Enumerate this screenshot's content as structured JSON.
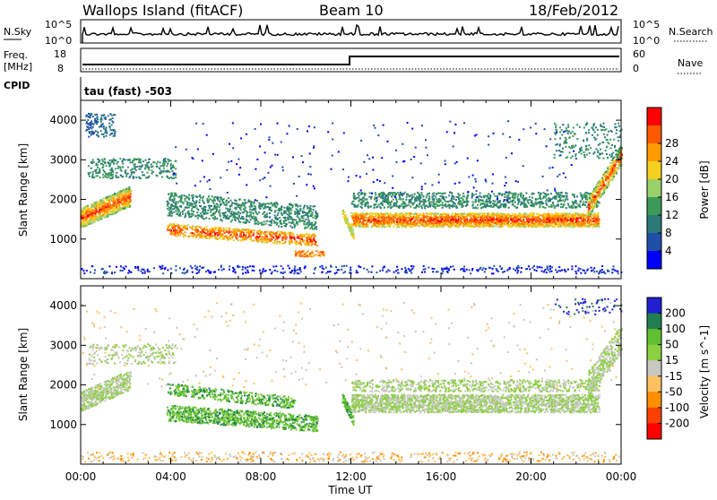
{
  "header": {
    "station": "Wallops Island (fitACF)",
    "beam": "Beam 10",
    "date": "18/Feb/2012"
  },
  "nsky": {
    "label": "N.Sky",
    "tick_top": "10^5",
    "tick_bottom": "10^0",
    "right_label": "N.Search",
    "right_tick_top": "10^5",
    "right_tick_bottom": "10^0"
  },
  "freq": {
    "label_line1": "Freq.",
    "label_line2": "[MHz]",
    "tick_top": "18",
    "tick_bottom": "8",
    "right_label": "Nave",
    "right_tick_top": "60",
    "right_tick_bottom": "0"
  },
  "cpid": {
    "label": "CPID",
    "value": "tau (fast) -503"
  },
  "colors": {
    "power_scale": [
      "#0000ff",
      "#1f4fa8",
      "#2b7a78",
      "#3c9a5a",
      "#9ad06a",
      "#f5d020",
      "#ff9a00",
      "#ff5a00",
      "#ff0000"
    ],
    "velocity_scale": [
      "#2020d0",
      "#208050",
      "#60c030",
      "#8ad040",
      "#c8c8c0",
      "#ffc060",
      "#ff9000",
      "#ff4000",
      "#ff0000"
    ]
  },
  "chart_data": [
    {
      "type": "heatmap",
      "title": "",
      "ylabel": "Slant Range [km]",
      "xlabel": "",
      "ylim": [
        0,
        4500
      ],
      "y_ticks": [
        1000,
        2000,
        3000,
        4000
      ],
      "x_ticks": [
        "00:00",
        "04:00",
        "08:00",
        "12:00",
        "16:00",
        "20:00",
        "00:00"
      ],
      "colorbar": {
        "label": "Power [dB]",
        "ticks": [
          4,
          8,
          12,
          16,
          20,
          24,
          28
        ],
        "range": [
          0,
          30
        ]
      }
    },
    {
      "type": "heatmap",
      "title": "",
      "ylabel": "Slant Range [km]",
      "xlabel": "Time UT",
      "ylim": [
        0,
        4500
      ],
      "y_ticks": [
        1000,
        2000,
        3000,
        4000
      ],
      "x_ticks": [
        "00:00",
        "04:00",
        "08:00",
        "12:00",
        "16:00",
        "20:00",
        "00:00"
      ],
      "colorbar": {
        "label": "Velocity [m s^-1]",
        "ticks": [
          200,
          100,
          50,
          15,
          -15,
          -50,
          -100,
          -200
        ]
      }
    }
  ]
}
